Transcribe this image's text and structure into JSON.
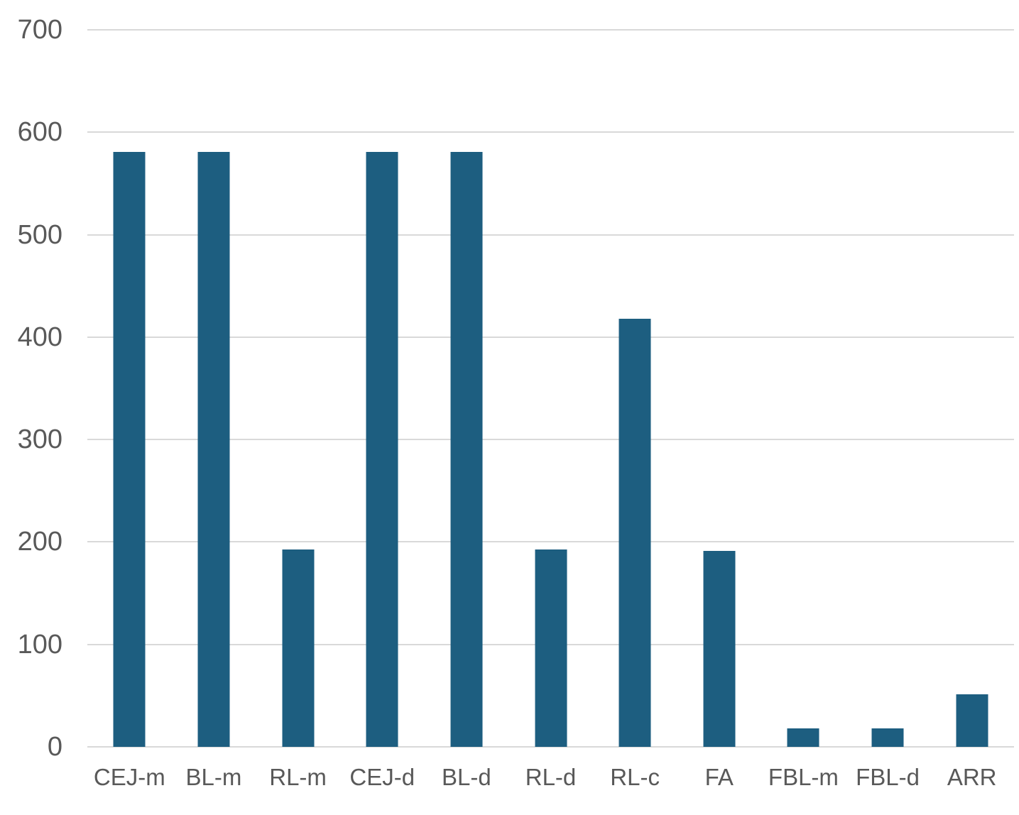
{
  "chart_data": {
    "type": "bar",
    "title": "",
    "xlabel": "",
    "ylabel": "",
    "categories": [
      "CEJ-m",
      "BL-m",
      "RL-m",
      "CEJ-d",
      "BL-d",
      "RL-d",
      "RL-c",
      "FA",
      "FBL-m",
      "FBL-d",
      "ARR"
    ],
    "values": [
      581,
      581,
      193,
      581,
      581,
      193,
      418,
      191,
      18,
      18,
      51
    ],
    "ylim": [
      0,
      700
    ],
    "y_ticks": [
      "0",
      "100",
      "200",
      "300",
      "400",
      "500",
      "600",
      "700"
    ],
    "y_tick_values": [
      0,
      100,
      200,
      300,
      400,
      500,
      600,
      700
    ],
    "grid": true,
    "legend": false,
    "colors": {
      "bar": "#1d5e80",
      "gridline": "#d9d9d9",
      "tick_label": "#595959",
      "background": "#ffffff"
    }
  }
}
